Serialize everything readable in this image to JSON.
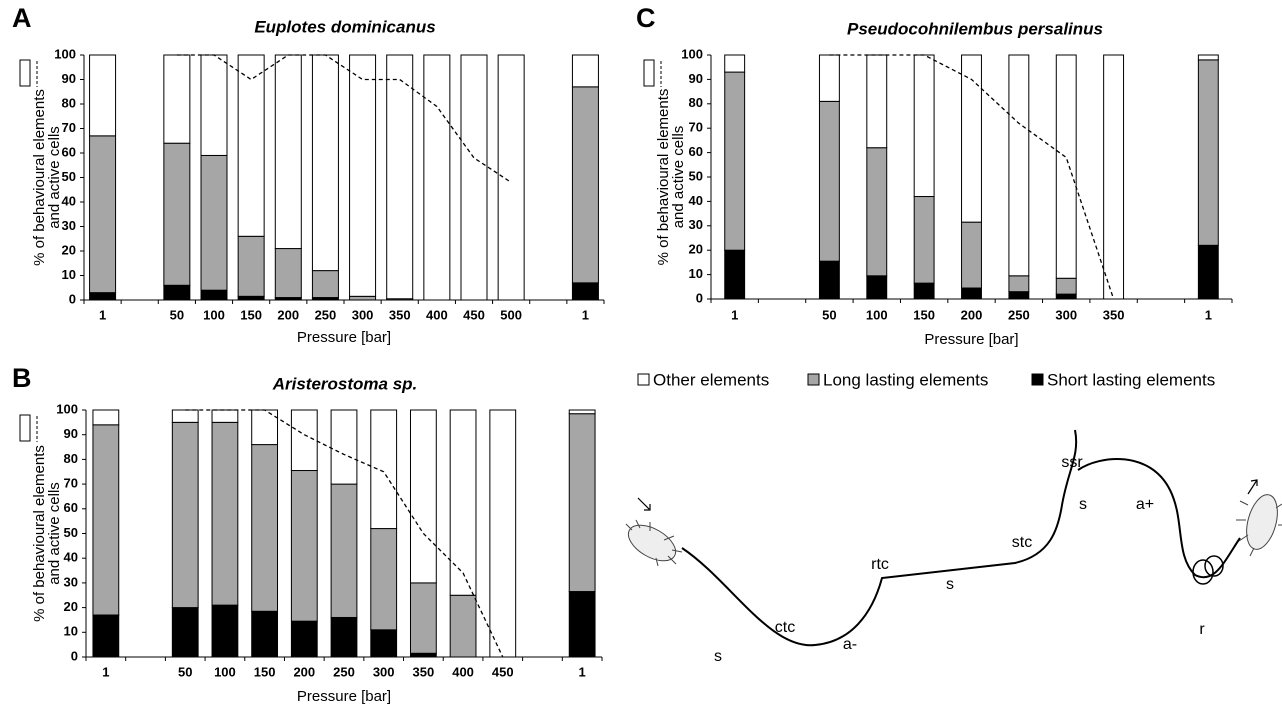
{
  "chart_data": [
    {
      "type": "bar",
      "stacked": true,
      "panel": "A",
      "title": "Euplotes dominicanus",
      "x_label": "Pressure [bar]",
      "y_label": [
        "% of behavioural elements",
        "and active cells"
      ],
      "categories": [
        "1",
        null,
        "50",
        "100",
        "150",
        "200",
        "250",
        "300",
        "350",
        "400",
        "450",
        "500",
        null,
        "1"
      ],
      "series": [
        {
          "name": "Short lasting elements",
          "color": "#000000",
          "values": [
            3,
            null,
            6,
            4,
            1.5,
            1,
            1,
            0,
            0,
            0,
            0,
            0,
            null,
            7
          ]
        },
        {
          "name": "Long lasting elements",
          "color": "#a6a6a6",
          "values": [
            64,
            null,
            58,
            55,
            24.5,
            20,
            11,
            1.5,
            0.5,
            0,
            0,
            0,
            null,
            80
          ]
        },
        {
          "name": "Other elements",
          "color": "#ffffff",
          "values": [
            33,
            null,
            36,
            41,
            74,
            79,
            88,
            98.5,
            99.5,
            100,
            100,
            100,
            null,
            13
          ]
        }
      ],
      "active_cells": {
        "color": "#000000",
        "style": "dashed",
        "values": [
          null,
          null,
          100,
          100,
          90,
          100,
          100,
          90,
          90,
          79,
          58,
          48,
          null,
          null
        ]
      },
      "ylim": [
        0,
        100
      ],
      "yticks": [
        0,
        10,
        20,
        30,
        40,
        50,
        60,
        70,
        80,
        90,
        100
      ],
      "grid": false
    },
    {
      "type": "bar",
      "stacked": true,
      "panel": "B",
      "title": "Aristerostoma sp.",
      "x_label": "Pressure [bar]",
      "y_label": [
        "% of behavioural elements",
        "and active cells"
      ],
      "categories": [
        "1",
        null,
        "50",
        "100",
        "150",
        "200",
        "250",
        "300",
        "350",
        "400",
        "450",
        null,
        "1"
      ],
      "series": [
        {
          "name": "Short lasting elements",
          "color": "#000000",
          "values": [
            17,
            null,
            20,
            21,
            18.5,
            14.5,
            16,
            11,
            1.5,
            0,
            0,
            null,
            26.5
          ]
        },
        {
          "name": "Long lasting elements",
          "color": "#a6a6a6",
          "values": [
            77,
            null,
            75,
            74,
            67.5,
            61,
            54,
            41,
            28.5,
            25,
            0,
            null,
            72
          ]
        },
        {
          "name": "Other elements",
          "color": "#ffffff",
          "values": [
            6,
            null,
            5,
            5,
            14,
            24.5,
            30,
            48,
            70,
            75,
            100,
            null,
            1.5
          ]
        }
      ],
      "active_cells": {
        "color": "#000000",
        "style": "dashed",
        "values": [
          null,
          null,
          100,
          100,
          100,
          90,
          82,
          75,
          50,
          34,
          0,
          null,
          null
        ]
      },
      "ylim": [
        0,
        100
      ],
      "yticks": [
        0,
        10,
        20,
        30,
        40,
        50,
        60,
        70,
        80,
        90,
        100
      ],
      "grid": false
    },
    {
      "type": "bar",
      "stacked": true,
      "panel": "C",
      "title": "Pseudocohnilembus persalinus",
      "x_label": "Pressure [bar]",
      "y_label": [
        "% of behavioural elements",
        "and active cells"
      ],
      "categories": [
        "1",
        null,
        "50",
        "100",
        "150",
        "200",
        "250",
        "300",
        "350",
        null,
        "1"
      ],
      "series": [
        {
          "name": "Short lasting elements",
          "color": "#000000",
          "values": [
            20,
            null,
            15.5,
            9.5,
            6.5,
            4.5,
            3,
            2,
            0,
            null,
            22
          ]
        },
        {
          "name": "Long lasting elements",
          "color": "#a6a6a6",
          "values": [
            73,
            null,
            65.5,
            52.5,
            35.5,
            27,
            6.5,
            6.5,
            0,
            null,
            76
          ]
        },
        {
          "name": "Other elements",
          "color": "#ffffff",
          "values": [
            7,
            null,
            19,
            38,
            58,
            68.5,
            90.5,
            91.5,
            100,
            null,
            2
          ]
        }
      ],
      "active_cells": {
        "color": "#000000",
        "style": "dashed",
        "values": [
          null,
          null,
          100,
          100,
          100,
          90,
          72,
          58,
          0,
          null,
          null
        ]
      },
      "ylim": [
        0,
        100
      ],
      "yticks": [
        0,
        10,
        20,
        30,
        40,
        50,
        60,
        70,
        80,
        90,
        100
      ],
      "grid": false
    }
  ],
  "diagram": {
    "labels": [
      "s",
      "ctc",
      "a-",
      "rtc",
      "s",
      "stc",
      "s",
      "ssr",
      "a+",
      "r"
    ]
  }
}
